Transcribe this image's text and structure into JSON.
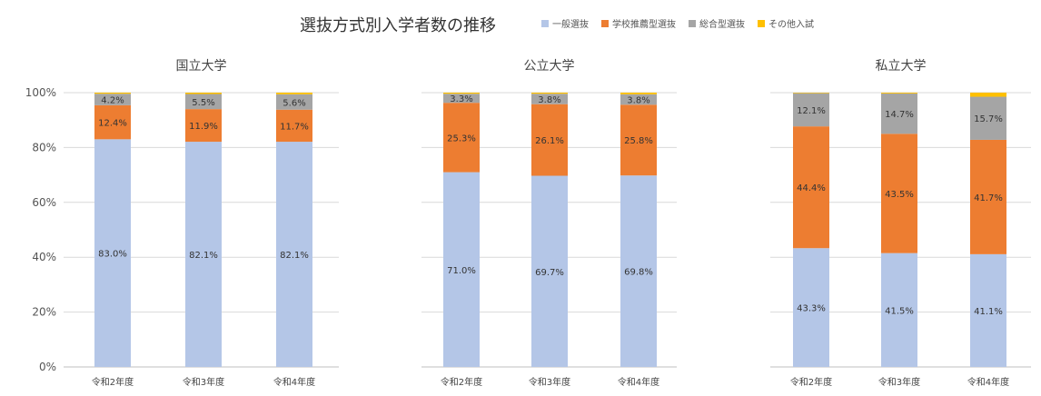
{
  "title": "選抜方式別入学者数の推移",
  "legend": [
    {
      "label": "一般選抜",
      "color": "#b4c6e7"
    },
    {
      "label": "学校推薦型選抜",
      "color": "#ed7d31"
    },
    {
      "label": "総合型選抜",
      "color": "#a5a5a5"
    },
    {
      "label": "その他入試",
      "color": "#ffc000"
    }
  ],
  "chart_data": [
    {
      "type": "bar",
      "stacked": true,
      "title": "国立大学",
      "categories": [
        "令和2年度",
        "令和3年度",
        "令和4年度"
      ],
      "ylim": [
        0,
        100
      ],
      "yticks": [
        "0%",
        "20%",
        "40%",
        "60%",
        "80%",
        "100%"
      ],
      "grid": true,
      "series": [
        {
          "name": "一般選抜",
          "color": "#b4c6e7",
          "values": [
            83.0,
            82.1,
            82.1
          ],
          "labels": [
            "83.0%",
            "82.1%",
            "82.1%"
          ]
        },
        {
          "name": "学校推薦型選抜",
          "color": "#ed7d31",
          "values": [
            12.4,
            11.9,
            11.7
          ],
          "labels": [
            "12.4%",
            "11.9%",
            "11.7%"
          ]
        },
        {
          "name": "総合型選抜",
          "color": "#a5a5a5",
          "values": [
            4.2,
            5.5,
            5.6
          ],
          "labels": [
            "4.2%",
            "5.5%",
            "5.6%"
          ]
        },
        {
          "name": "その他入試",
          "color": "#ffc000",
          "values": [
            0.4,
            0.5,
            0.6
          ],
          "labels": [
            "",
            "",
            ""
          ]
        }
      ]
    },
    {
      "type": "bar",
      "stacked": true,
      "title": "公立大学",
      "categories": [
        "令和2年度",
        "令和3年度",
        "令和4年度"
      ],
      "ylim": [
        0,
        100
      ],
      "grid": true,
      "series": [
        {
          "name": "一般選抜",
          "color": "#b4c6e7",
          "values": [
            71.0,
            69.7,
            69.8
          ],
          "labels": [
            "71.0%",
            "69.7%",
            "69.8%"
          ]
        },
        {
          "name": "学校推薦型選抜",
          "color": "#ed7d31",
          "values": [
            25.3,
            26.1,
            25.8
          ],
          "labels": [
            "25.3%",
            "26.1%",
            "25.8%"
          ]
        },
        {
          "name": "総合型選抜",
          "color": "#a5a5a5",
          "values": [
            3.3,
            3.8,
            3.8
          ],
          "labels": [
            "3.3%",
            "3.8%",
            "3.8%"
          ]
        },
        {
          "name": "その他入試",
          "color": "#ffc000",
          "values": [
            0.4,
            0.4,
            0.6
          ],
          "labels": [
            "",
            "",
            ""
          ]
        }
      ]
    },
    {
      "type": "bar",
      "stacked": true,
      "title": "私立大学",
      "categories": [
        "令和2年度",
        "令和3年度",
        "令和4年度"
      ],
      "ylim": [
        0,
        100
      ],
      "grid": true,
      "series": [
        {
          "name": "一般選抜",
          "color": "#b4c6e7",
          "values": [
            43.3,
            41.5,
            41.1
          ],
          "labels": [
            "43.3%",
            "41.5%",
            "41.1%"
          ]
        },
        {
          "name": "学校推薦型選抜",
          "color": "#ed7d31",
          "values": [
            44.4,
            43.5,
            41.7
          ],
          "labels": [
            "44.4%",
            "43.5%",
            "41.7%"
          ]
        },
        {
          "name": "総合型選抜",
          "color": "#a5a5a5",
          "values": [
            12.1,
            14.7,
            15.7
          ],
          "labels": [
            "12.1%",
            "14.7%",
            "15.7%"
          ]
        },
        {
          "name": "その他入試",
          "color": "#ffc000",
          "values": [
            0.2,
            0.3,
            1.5
          ],
          "labels": [
            "",
            "",
            ""
          ]
        }
      ]
    }
  ]
}
